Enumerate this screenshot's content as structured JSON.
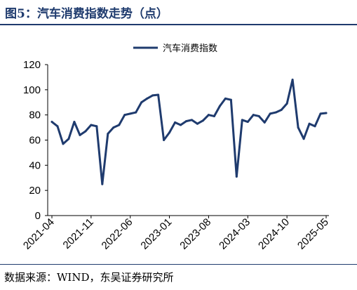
{
  "title": "图5：汽车消费指数走势（点）",
  "source": "数据来源：WIND，东吴证券研究所",
  "colors": {
    "series": "#1f3b6e",
    "axis": "#000000",
    "title": "#1f3b6e"
  },
  "chart_data": {
    "type": "line",
    "title": "图5：汽车消费指数走势（点）",
    "xlabel": "",
    "ylabel": "",
    "ylim": [
      0,
      120
    ],
    "yticks": [
      0,
      20,
      40,
      60,
      80,
      100,
      120
    ],
    "grid": false,
    "legend_position": "top-center",
    "xtick_labels": [
      "2021-04",
      "2021-11",
      "2022-06",
      "2023-01",
      "2023-08",
      "2024-03",
      "2024-10",
      "2025-05"
    ],
    "x": [
      "2021-04",
      "2021-05",
      "2021-06",
      "2021-07",
      "2021-08",
      "2021-09",
      "2021-10",
      "2021-11",
      "2021-12",
      "2022-01",
      "2022-02",
      "2022-03",
      "2022-04",
      "2022-05",
      "2022-06",
      "2022-07",
      "2022-08",
      "2022-09",
      "2022-10",
      "2022-11",
      "2022-12",
      "2023-01",
      "2023-02",
      "2023-03",
      "2023-04",
      "2023-05",
      "2023-06",
      "2023-07",
      "2023-08",
      "2023-09",
      "2023-10",
      "2023-11",
      "2023-12",
      "2024-01",
      "2024-02",
      "2024-03",
      "2024-04",
      "2024-05",
      "2024-06",
      "2024-07",
      "2024-08",
      "2024-09",
      "2024-10",
      "2024-11",
      "2024-12",
      "2025-01",
      "2025-02",
      "2025-03",
      "2025-04",
      "2025-05"
    ],
    "series": [
      {
        "name": "汽车消费指数",
        "values": [
          74.5,
          71,
          57,
          61,
          74.5,
          64,
          67,
          72,
          71,
          25,
          65,
          70,
          72,
          80,
          81,
          82,
          90,
          93,
          95.5,
          96,
          60,
          66,
          74,
          72,
          75,
          76,
          73,
          75.5,
          80,
          79,
          87,
          93,
          92,
          31,
          76,
          74.5,
          80,
          79,
          74,
          81,
          82,
          84,
          89,
          108,
          70,
          61,
          73,
          71,
          81,
          81.5
        ]
      }
    ]
  }
}
